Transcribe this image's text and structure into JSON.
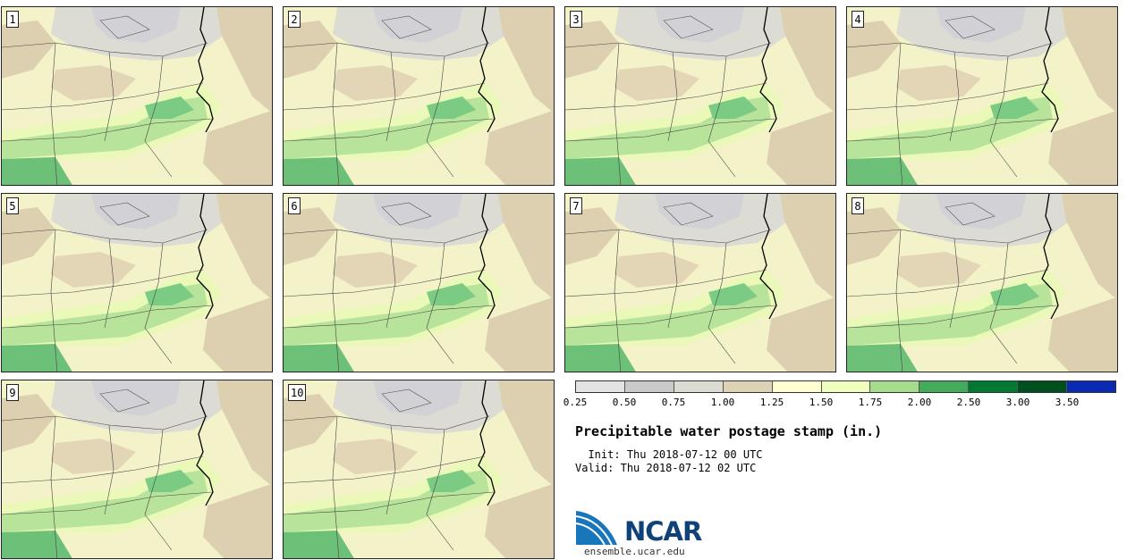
{
  "figure": {
    "title": "Precipitable water postage stamp (in.)",
    "init_label": "Init:",
    "init_time": "Thu 2018-07-12 00 UTC",
    "valid_label": "Valid:",
    "valid_time": "Thu 2018-07-12 02 UTC"
  },
  "panels": [
    {
      "label": "1"
    },
    {
      "label": "2"
    },
    {
      "label": "3"
    },
    {
      "label": "4"
    },
    {
      "label": "5"
    },
    {
      "label": "6"
    },
    {
      "label": "7"
    },
    {
      "label": "8"
    },
    {
      "label": "9"
    },
    {
      "label": "10"
    }
  ],
  "colorbar": {
    "ticks": [
      "0.25",
      "0.50",
      "0.75",
      "1.00",
      "1.25",
      "1.50",
      "1.75",
      "2.00",
      "2.50",
      "3.00",
      "3.50"
    ],
    "colors": [
      "#e3e3e3",
      "#cacaca",
      "#dcdcd2",
      "#ddd2b4",
      "#ffffd2",
      "#f0ffbe",
      "#a7dc8e",
      "#44aa5c",
      "#007a33",
      "#00501f",
      "#0a2ab4"
    ]
  },
  "logo": {
    "name": "NCAR",
    "url": "ensemble.ucar.edu"
  }
}
